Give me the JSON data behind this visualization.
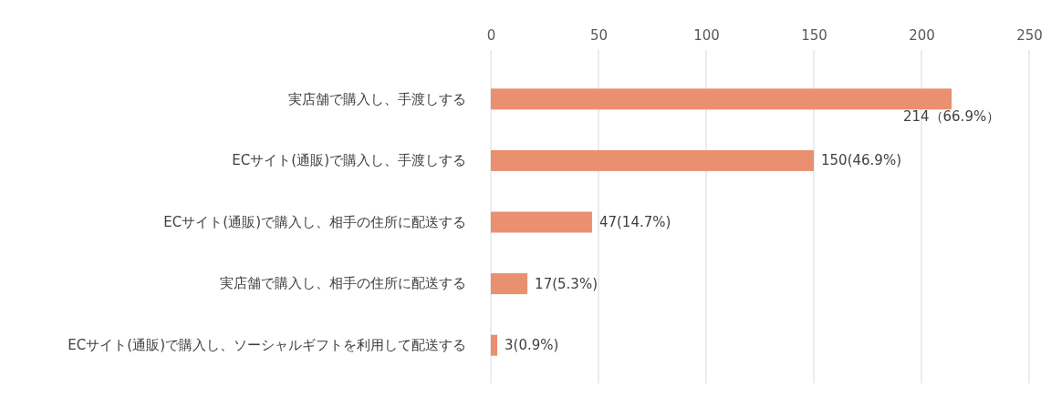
{
  "chart_data": {
    "type": "bar",
    "orientation": "horizontal",
    "categories": [
      "実店舗で購入し、手渡しする",
      "ECサイト(通販)で購入し、手渡しする",
      "ECサイト(通販)で購入し、相手の住所に配送する",
      "実店舗で購入し、相手の住所に配送する",
      "ECサイト(通販)で購入し、ソーシャルギフトを利用して配送する"
    ],
    "values": [
      214,
      150,
      47,
      17,
      3
    ],
    "value_labels": [
      "214（66.9%）",
      "150(46.9%)",
      "47(14.7%)",
      "17(5.3%)",
      "3(0.9%)"
    ],
    "color": "#e8906f",
    "xlim": [
      0,
      250
    ],
    "xticks": [
      0,
      50,
      100,
      150,
      200,
      250
    ],
    "grid": "x"
  }
}
